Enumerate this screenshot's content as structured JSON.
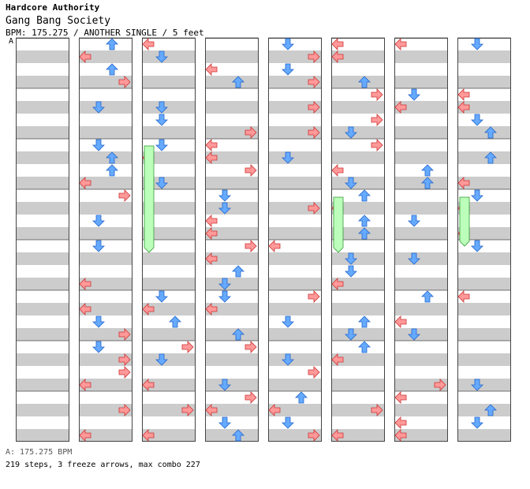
{
  "header": {
    "artist": "Hardcore Authority",
    "title": "Gang Bang Society",
    "info": "BPM: 175.275 / ANOTHER SINGLE / 5 feet",
    "bpm_marker": "A"
  },
  "footer": {
    "bpm": "A: 175.275 BPM",
    "stats": "219 steps, 3 freeze arrows, max combo 227"
  },
  "colors": {
    "stripe": "#cccccc",
    "left_right_arrow": "#ff9999",
    "up_down_arrow": "#66aaff",
    "freeze": "#bbffbb"
  },
  "chart_data": {
    "type": "table",
    "columns": 8,
    "measures_per_column": 8,
    "lanes": [
      "left",
      "down",
      "up",
      "right"
    ],
    "notes": [
      [
        "L",
        "D",
        "U",
        "R"
      ],
      [
        "D",
        "R",
        "U",
        "R"
      ],
      [
        "L",
        "D",
        "U",
        "R"
      ],
      [
        "U",
        "R",
        "L",
        "D"
      ],
      [
        "L",
        "D",
        "U",
        "R"
      ],
      [
        "L",
        "R",
        "U",
        "D"
      ],
      [
        "R",
        "U",
        "D",
        "L"
      ],
      [
        "D",
        "U",
        "R",
        "L"
      ]
    ],
    "freeze_arrows": 3
  }
}
